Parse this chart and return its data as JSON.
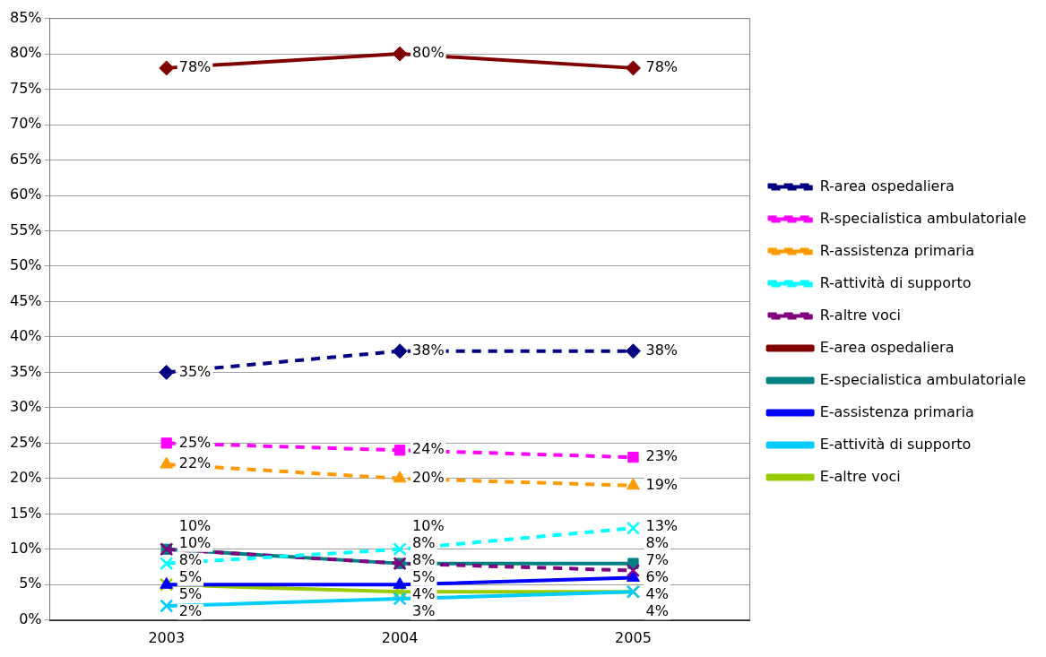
{
  "chart_data": {
    "type": "line",
    "categories": [
      "2003",
      "2004",
      "2005"
    ],
    "ylim": [
      0,
      85
    ],
    "yticks": [
      {
        "value": 0,
        "label": "0%"
      },
      {
        "value": 5,
        "label": "5%"
      },
      {
        "value": 10,
        "label": "10%"
      },
      {
        "value": 15,
        "label": "15%"
      },
      {
        "value": 20,
        "label": "20%"
      },
      {
        "value": 25,
        "label": "25%"
      },
      {
        "value": 30,
        "label": "30%"
      },
      {
        "value": 35,
        "label": "35%"
      },
      {
        "value": 40,
        "label": "40%"
      },
      {
        "value": 45,
        "label": "45%"
      },
      {
        "value": 50,
        "label": "50%"
      },
      {
        "value": 55,
        "label": "55%"
      },
      {
        "value": 60,
        "label": "60%"
      },
      {
        "value": 65,
        "label": "65%"
      },
      {
        "value": 70,
        "label": "70%"
      },
      {
        "value": 75,
        "label": "75%"
      },
      {
        "value": 80,
        "label": "80%"
      },
      {
        "value": 85,
        "label": "85%"
      }
    ],
    "grid": "y",
    "legend": "right",
    "series": [
      {
        "name": "R-area ospedaliera",
        "color": "#000080",
        "values": [
          35,
          38,
          38
        ],
        "value_labels": [
          "35%",
          "38%",
          "38%"
        ],
        "marker": "diamond",
        "line_style": "dashed"
      },
      {
        "name": "R-specialistica ambulatoriale",
        "color": "#ff00ff",
        "values": [
          25,
          24,
          23
        ],
        "value_labels": [
          "25%",
          "24%",
          "23%"
        ],
        "marker": "square",
        "line_style": "dashed"
      },
      {
        "name": "R-assistenza primaria",
        "color": "#ff9900",
        "values": [
          22,
          20,
          19
        ],
        "value_labels": [
          "22%",
          "20%",
          "19%"
        ],
        "marker": "triangle",
        "line_style": "dashed"
      },
      {
        "name": "R-attività di supporto",
        "color": "#00ffff",
        "values": [
          8,
          10,
          13
        ],
        "value_labels": [
          "8%",
          "10%",
          "13%"
        ],
        "marker": "cross",
        "line_style": "dashed"
      },
      {
        "name": "R-altre voci",
        "color": "#800080",
        "values": [
          10,
          8,
          7
        ],
        "value_labels": [
          "10%",
          "8%",
          "7%"
        ],
        "marker": "cross",
        "line_style": "dashed"
      },
      {
        "name": "E-area ospedaliera",
        "color": "#800000",
        "values": [
          78,
          80,
          78
        ],
        "value_labels": [
          "78%",
          "80%",
          "78%"
        ],
        "marker": "diamond",
        "line_style": "solid"
      },
      {
        "name": "E-specialistica ambulatoriale",
        "color": "#008080",
        "values": [
          10,
          8,
          8
        ],
        "value_labels": [
          "10%",
          "8%",
          "8%"
        ],
        "marker": "square",
        "line_style": "solid"
      },
      {
        "name": "E-assistenza primaria",
        "color": "#0000ff",
        "values": [
          5,
          5,
          6
        ],
        "value_labels": [
          "5%",
          "5%",
          "6%"
        ],
        "marker": "triangle",
        "line_style": "solid"
      },
      {
        "name": "E-attività di supporto",
        "color": "#00ccff",
        "values": [
          2,
          3,
          4
        ],
        "value_labels": [
          "2%",
          "3%",
          "4%"
        ],
        "marker": "cross",
        "line_style": "solid"
      },
      {
        "name": "E-altre voci",
        "color": "#99cc00",
        "values": [
          5,
          4,
          4
        ],
        "value_labels": [
          "5%",
          "4%",
          "4%"
        ],
        "marker": "cross",
        "line_style": "solid"
      }
    ]
  }
}
